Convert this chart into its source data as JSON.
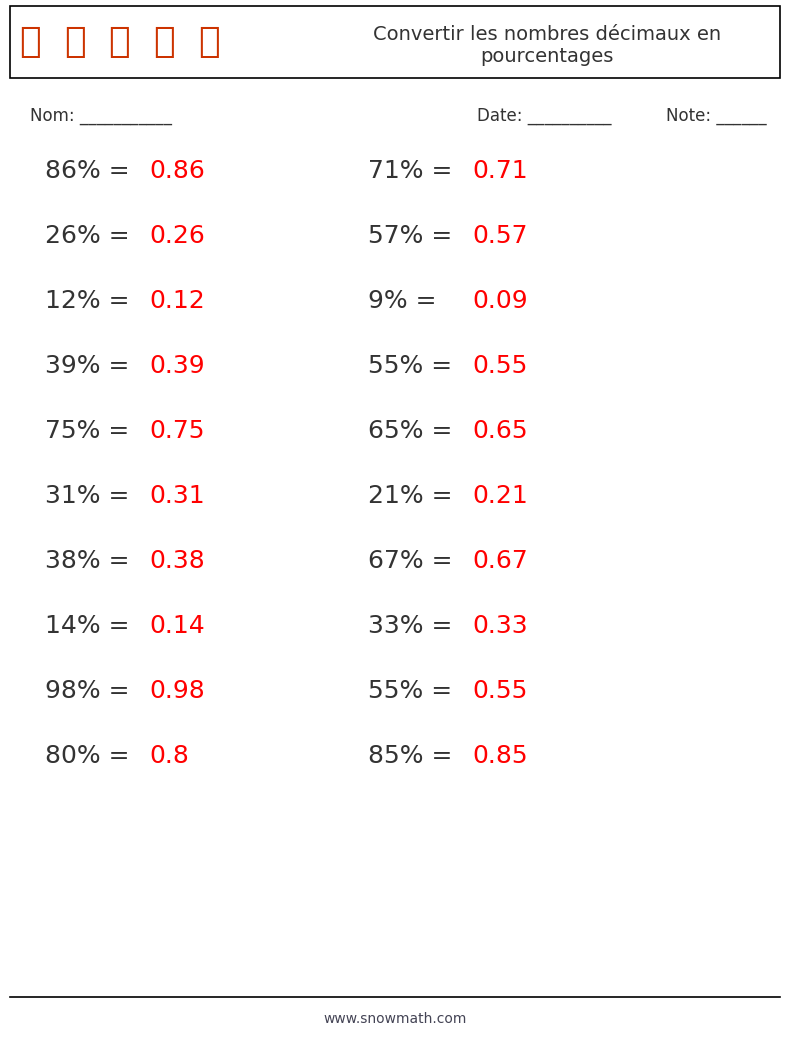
{
  "title": "Convertir les nombres décimaux en\npourcentages",
  "header_box_color": "#000000",
  "background_color": "#ffffff",
  "text_color": "#333333",
  "answer_color": "#ff0000",
  "nom_label": "Nom: ___________",
  "date_label": "Date: __________",
  "note_label": "Note: ______",
  "footer_text": "www.snowmath.com",
  "left_questions": [
    {
      "q": "86% = ",
      "a": "0.86"
    },
    {
      "q": "26% = ",
      "a": "0.26"
    },
    {
      "q": "12% = ",
      "a": "0.12"
    },
    {
      "q": "39% = ",
      "a": "0.39"
    },
    {
      "q": "75% = ",
      "a": "0.75"
    },
    {
      "q": "31% = ",
      "a": "0.31"
    },
    {
      "q": "38% = ",
      "a": "0.38"
    },
    {
      "q": "14% = ",
      "a": "0.14"
    },
    {
      "q": "98% = ",
      "a": "0.98"
    },
    {
      "q": "80% = ",
      "a": "0.8"
    }
  ],
  "right_questions": [
    {
      "q": "71% = ",
      "a": "0.71"
    },
    {
      "q": "57% = ",
      "a": "0.57"
    },
    {
      "q": "9% = ",
      "a": "0.09"
    },
    {
      "q": "55% = ",
      "a": "0.55"
    },
    {
      "q": "65% = ",
      "a": "0.65"
    },
    {
      "q": "21% = ",
      "a": "0.21"
    },
    {
      "q": "67% = ",
      "a": "0.67"
    },
    {
      "q": "33% = ",
      "a": "0.33"
    },
    {
      "q": "55% = ",
      "a": "0.55"
    },
    {
      "q": "85% = ",
      "a": "0.85"
    }
  ],
  "icon_emoji": [
    "🪜",
    "🚫",
    "🪣",
    "🧯",
    "🪓"
  ],
  "q_fontsize": 18,
  "a_fontsize": 18,
  "label_fontsize": 12,
  "title_fontsize": 14,
  "footer_fontsize": 10
}
